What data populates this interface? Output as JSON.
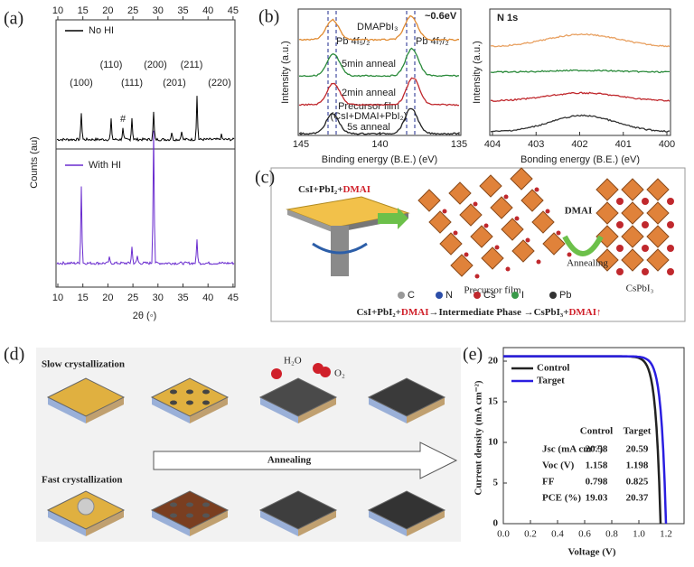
{
  "panels": {
    "a": {
      "label": "(a)",
      "top_ticks": [
        "10",
        "15",
        "20",
        "25",
        "30",
        "35",
        "40",
        "45"
      ],
      "bottom_ticks": [
        "10",
        "15",
        "20",
        "25",
        "30",
        "35",
        "40",
        "45"
      ],
      "y_label": "Counts (au)",
      "x_label": "2θ (◦)",
      "legend_top": "No HI",
      "legend_bottom": "With HI",
      "peaks": [
        "(100)",
        "(110)",
        "(111)",
        "#",
        "(200)",
        "(201)",
        "(211)",
        "(220)"
      ]
    },
    "b": {
      "label": "(b)",
      "left_ticks": [
        "145",
        "140",
        "135"
      ],
      "right_ticks": [
        "404",
        "403",
        "402",
        "401",
        "400"
      ],
      "x_label_left": "Binding energy (B.E.) (eV)",
      "x_label_right": "Bonding energy (B.E.) (eV)",
      "y_label": "Intensity (a.u.)",
      "n1s": "N 1s",
      "shift": "~0.6eV",
      "pb52": "Pb 4f₅/₂",
      "pb72": "Pb 4f₇/₂",
      "curves": [
        "DMAPbI₃",
        "5min anneal",
        "2min anneal",
        "Precursor film",
        "(CsI+DMAI+PbI₂)",
        "5s anneal"
      ]
    },
    "c": {
      "label": "(c)",
      "reagent": "CsI+PbI₂+",
      "reagent_red": "DMAI",
      "precursor": "Precursor film",
      "dmai": "DMAI",
      "annealing": "Annealing",
      "product": "CsPbI₃",
      "legend": [
        "C",
        "N",
        "Cs",
        "I",
        "Pb"
      ],
      "equation": [
        "CsI+PbI₂+",
        "DMAI",
        "→Intermediate Phase →CsPbI₃+",
        "DMAI↑"
      ]
    },
    "d": {
      "label": "(d)",
      "slow": "Slow crystallization",
      "fast": "Fast crystallization",
      "annealing": "Annealing",
      "h2o": "H₂O",
      "o2": "O₂"
    },
    "e": {
      "label": "(e)",
      "y_label": "Current density (mA cm⁻²)",
      "x_label": "Voltage (V)",
      "yticks": [
        "0",
        "5",
        "10",
        "15",
        "20"
      ],
      "xticks": [
        "0.0",
        "0.2",
        "0.4",
        "0.6",
        "0.8",
        "1.0",
        "1.2"
      ],
      "legend": [
        "Control",
        "Target"
      ],
      "table": {
        "header": [
          "Control",
          "Target"
        ],
        "rows": [
          [
            "Jsc (mA cm⁻²)",
            "20.58",
            "20.59"
          ],
          [
            "Voc (V)",
            "1.158",
            "1.198"
          ],
          [
            "FF",
            "0.798",
            "0.825"
          ],
          [
            "PCE (%)",
            "19.03",
            "20.37"
          ]
        ]
      }
    }
  }
}
